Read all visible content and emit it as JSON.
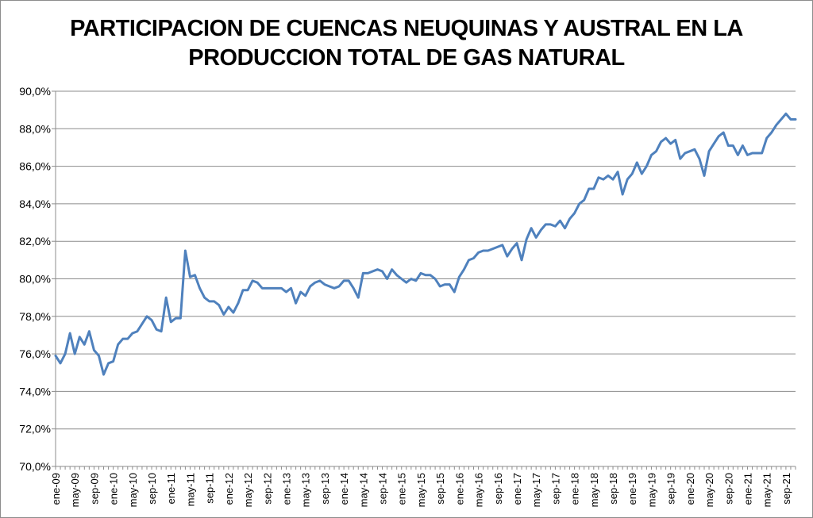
{
  "chart_data": {
    "type": "line",
    "title_lines": [
      "PARTICIPACION DE CUENCAS NEUQUINAS Y AUSTRAL EN LA",
      "PRODUCCION TOTAL DE GAS NATURAL"
    ],
    "xlabel": "",
    "ylabel": "",
    "ylim": [
      70,
      90
    ],
    "y_ticks": [
      "70,0%",
      "72,0%",
      "74,0%",
      "76,0%",
      "78,0%",
      "80,0%",
      "82,0%",
      "84,0%",
      "86,0%",
      "88,0%",
      "90,0%"
    ],
    "x_tick_labels": [
      "ene-09",
      "may-09",
      "sep-09",
      "ene-10",
      "may-10",
      "sep-10",
      "ene-11",
      "may-11",
      "sep-11",
      "ene-12",
      "may-12",
      "sep-12",
      "ene-13",
      "may-13",
      "sep-13",
      "ene-14",
      "may-14",
      "sep-14",
      "ene-15",
      "may-15",
      "sep-15",
      "ene-16",
      "may-16",
      "sep-16",
      "ene-17",
      "may-17",
      "sep-17",
      "ene-18",
      "may-18",
      "sep-18",
      "ene-19",
      "may-19",
      "sep-19",
      "ene-20",
      "may-20",
      "sep-20",
      "ene-21",
      "may-21",
      "sep-21"
    ],
    "grid": "horizontal",
    "legend": "none",
    "line_color": "#4f81bd",
    "series": [
      {
        "start_month": "ene-09",
        "values": [
          75.9,
          75.5,
          76.0,
          77.1,
          76.0,
          76.9,
          76.5,
          77.2,
          76.2,
          75.9,
          74.9,
          75.5,
          75.6,
          76.5,
          76.8,
          76.8,
          77.1,
          77.2,
          77.6,
          78.0,
          77.8,
          77.3,
          77.2,
          79.0,
          77.7,
          77.9,
          77.9,
          81.5,
          80.1,
          80.2,
          79.5,
          79.0,
          78.8,
          78.8,
          78.6,
          78.1,
          78.5,
          78.2,
          78.7,
          79.4,
          79.4,
          79.9,
          79.8,
          79.5,
          79.5,
          79.5,
          79.5,
          79.5,
          79.3,
          79.5,
          78.7,
          79.3,
          79.1,
          79.6,
          79.8,
          79.9,
          79.7,
          79.6,
          79.5,
          79.6,
          79.9,
          79.9,
          79.5,
          79.0,
          80.3,
          80.3,
          80.4,
          80.5,
          80.4,
          80.0,
          80.5,
          80.2,
          80.0,
          79.8,
          80.0,
          79.9,
          80.3,
          80.2,
          80.2,
          80.0,
          79.6,
          79.7,
          79.7,
          79.3,
          80.1,
          80.5,
          81.0,
          81.1,
          81.4,
          81.5,
          81.5,
          81.6,
          81.7,
          81.8,
          81.2,
          81.6,
          81.9,
          81.0,
          82.1,
          82.7,
          82.2,
          82.6,
          82.9,
          82.9,
          82.8,
          83.1,
          82.7,
          83.2,
          83.5,
          84.0,
          84.2,
          84.8,
          84.8,
          85.4,
          85.3,
          85.5,
          85.3,
          85.7,
          84.5,
          85.3,
          85.6,
          86.2,
          85.6,
          86.0,
          86.6,
          86.8,
          87.3,
          87.5,
          87.2,
          87.4,
          86.4,
          86.7,
          86.8,
          86.9,
          86.4,
          85.5,
          86.8,
          87.2,
          87.6,
          87.8,
          87.1,
          87.1,
          86.6,
          87.1,
          86.6,
          86.7,
          86.7,
          86.7,
          87.5,
          87.8,
          88.2,
          88.5,
          88.8,
          88.5,
          88.5
        ]
      }
    ]
  }
}
